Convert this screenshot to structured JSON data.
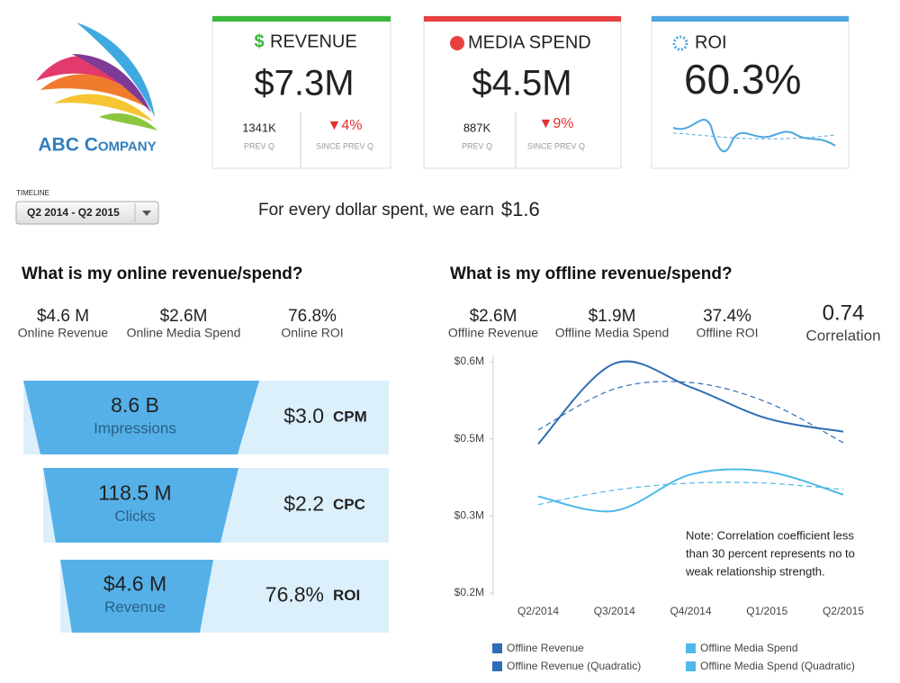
{
  "logo": {
    "company": "ABC Company"
  },
  "kpis": [
    {
      "title": "REVENUE",
      "value": "$7.3M",
      "prev": "1341K",
      "prev_label": "PREV Q",
      "change": "▼4%",
      "change_label": "SINCE PREV Q"
    },
    {
      "title": "MEDIA SPEND",
      "value": "$4.5M",
      "prev": "887K",
      "prev_label": "PREV Q",
      "change": "▼9%",
      "change_label": "SINCE PREV Q"
    },
    {
      "title": "ROI",
      "value": "60.3%"
    }
  ],
  "timeline": {
    "label": "TIMELINE",
    "selected": "Q2 2014 - Q2 2015"
  },
  "summary": {
    "text": "For every dollar spent, we earn",
    "amount": "$1.6"
  },
  "online": {
    "title": "What is my online revenue/spend?",
    "stats": [
      {
        "value": "$4.6 M",
        "label": "Online Revenue"
      },
      {
        "value": "$2.6M",
        "label": "Online Media Spend"
      },
      {
        "value": "76.8%",
        "label": "Online ROI"
      }
    ],
    "funnel": [
      {
        "value": "8.6 B",
        "label": "Impressions",
        "metric": "$3.0",
        "metric_label": "CPM"
      },
      {
        "value": "118.5 M",
        "label": "Clicks",
        "metric": "$2.2",
        "metric_label": "CPC"
      },
      {
        "value": "$4.6 M",
        "label": "Revenue",
        "metric": "76.8%",
        "metric_label": "ROI"
      }
    ]
  },
  "offline": {
    "title": "What is my offline revenue/spend?",
    "stats": [
      {
        "value": "$2.6M",
        "label": "Offline Revenue"
      },
      {
        "value": "$1.9M",
        "label": "Offline Media Spend"
      },
      {
        "value": "37.4%",
        "label": "Offline ROI"
      },
      {
        "value": "0.74",
        "label": "Correlation"
      }
    ],
    "note": [
      "Note: Correlation coefficient less",
      "than 30 percent represents no to",
      "weak relationship strength."
    ]
  },
  "chart_data": {
    "type": "line",
    "categories": [
      "Q2/2014",
      "Q3/2014",
      "Q4/2014",
      "Q1/2015",
      "Q2/2015"
    ],
    "ylim": [
      0.2,
      0.6
    ],
    "yticks": [
      {
        "value": 0.2,
        "label": "$0.2M"
      },
      {
        "value": 0.3333,
        "label": "$0.3M"
      },
      {
        "value": 0.4667,
        "label": "$0.5M"
      },
      {
        "value": 0.6,
        "label": "$0.6M"
      }
    ],
    "grid": false,
    "series": [
      {
        "name": "Offline Revenue",
        "color": "#2f6db5",
        "dashed": false,
        "values": [
          0.458,
          0.597,
          0.556,
          0.502,
          0.479
        ]
      },
      {
        "name": "Offline Revenue (Quadratic)",
        "color": "#2f6db5",
        "dashed": true,
        "values": [
          0.482,
          0.553,
          0.564,
          0.53,
          0.46
        ]
      },
      {
        "name": "Offline Media Spend",
        "color": "#4db8ea",
        "dashed": false,
        "values": [
          0.367,
          0.342,
          0.405,
          0.41,
          0.37
        ]
      },
      {
        "name": "Offline Media Spend (Quadratic)",
        "color": "#4db8ea",
        "dashed": true,
        "values": [
          0.353,
          0.378,
          0.39,
          0.39,
          0.379
        ]
      }
    ]
  }
}
